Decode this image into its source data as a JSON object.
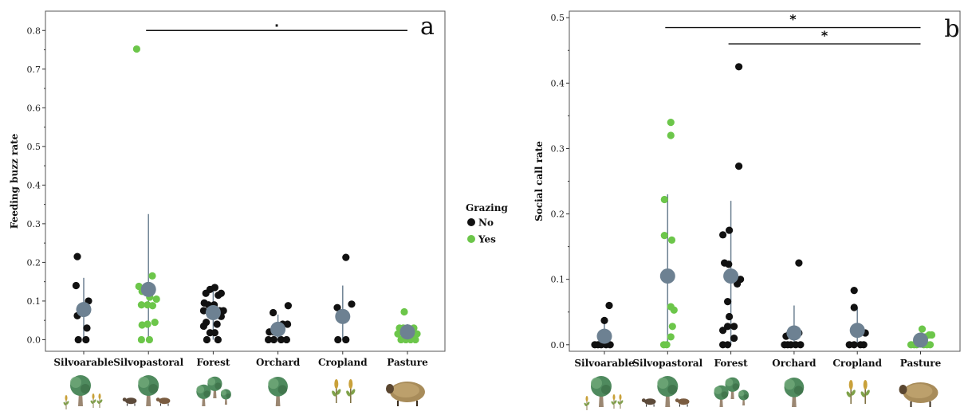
{
  "legend": {
    "title": "Grazing",
    "items": [
      {
        "label": "No",
        "color": "#111111"
      },
      {
        "label": "Yes",
        "color": "#6cc64a"
      }
    ]
  },
  "colors": {
    "mean": "#6d8192",
    "errorbar": "#6d8192",
    "no": "#111111",
    "yes": "#6cc64a"
  },
  "chart_data": [
    {
      "type": "scatter",
      "panel_letter": "a",
      "ylabel": "Feeding buzz rate",
      "xlabel": "",
      "categories": [
        "Silvoarable",
        "Silvopastoral",
        "Forest",
        "Orchard",
        "Cropland",
        "Pasture"
      ],
      "ylim": [
        -0.03,
        0.85
      ],
      "yticks": [
        0.0,
        0.1,
        0.2,
        0.3,
        0.4,
        0.5,
        0.6,
        0.7,
        0.8
      ],
      "tick_labels": [
        "0.0",
        "0.1",
        "0.2",
        "0.3",
        "0.4",
        "0.5",
        "0.6",
        "0.7",
        "0.8"
      ],
      "means": [
        0.078,
        0.13,
        0.07,
        0.027,
        0.06,
        0.02
      ],
      "error_bars": [
        [
          0.0,
          0.16
        ],
        [
          0.0,
          0.325
        ],
        [
          0.0,
          0.13
        ],
        [
          0.0,
          0.065
        ],
        [
          0.0,
          0.14
        ],
        [
          0.0,
          0.04
        ]
      ],
      "points": [
        {
          "cat": 0,
          "dx": -0.2,
          "y": 0.215,
          "g": "No"
        },
        {
          "cat": 0,
          "dx": -0.24,
          "y": 0.14,
          "g": "No"
        },
        {
          "cat": 0,
          "dx": -0.2,
          "y": 0.062,
          "g": "No"
        },
        {
          "cat": 0,
          "dx": 0.15,
          "y": 0.1,
          "g": "No"
        },
        {
          "cat": 0,
          "dx": 0.1,
          "y": 0.03,
          "g": "No"
        },
        {
          "cat": 0,
          "dx": -0.17,
          "y": 0.0,
          "g": "No"
        },
        {
          "cat": 0,
          "dx": 0.07,
          "y": 0.0,
          "g": "No"
        },
        {
          "cat": 1,
          "dx": -0.37,
          "y": 0.752,
          "g": "Yes"
        },
        {
          "cat": 1,
          "dx": -0.3,
          "y": 0.138,
          "g": "Yes"
        },
        {
          "cat": 1,
          "dx": 0.12,
          "y": 0.165,
          "g": "Yes"
        },
        {
          "cat": 1,
          "dx": -0.2,
          "y": 0.125,
          "g": "Yes"
        },
        {
          "cat": 1,
          "dx": 0.04,
          "y": 0.11,
          "g": "Yes"
        },
        {
          "cat": 1,
          "dx": 0.25,
          "y": 0.105,
          "g": "Yes"
        },
        {
          "cat": 1,
          "dx": -0.22,
          "y": 0.09,
          "g": "Yes"
        },
        {
          "cat": 1,
          "dx": -0.03,
          "y": 0.09,
          "g": "Yes"
        },
        {
          "cat": 1,
          "dx": 0.13,
          "y": 0.088,
          "g": "Yes"
        },
        {
          "cat": 1,
          "dx": -0.2,
          "y": 0.038,
          "g": "Yes"
        },
        {
          "cat": 1,
          "dx": -0.03,
          "y": 0.04,
          "g": "Yes"
        },
        {
          "cat": 1,
          "dx": 0.2,
          "y": 0.045,
          "g": "Yes"
        },
        {
          "cat": 1,
          "dx": -0.22,
          "y": 0.0,
          "g": "Yes"
        },
        {
          "cat": 1,
          "dx": 0.03,
          "y": 0.0,
          "g": "Yes"
        },
        {
          "cat": 2,
          "dx": -0.1,
          "y": 0.13,
          "g": "No"
        },
        {
          "cat": 2,
          "dx": 0.05,
          "y": 0.135,
          "g": "No"
        },
        {
          "cat": 2,
          "dx": -0.23,
          "y": 0.12,
          "g": "No"
        },
        {
          "cat": 2,
          "dx": 0.16,
          "y": 0.115,
          "g": "No"
        },
        {
          "cat": 2,
          "dx": 0.25,
          "y": 0.12,
          "g": "No"
        },
        {
          "cat": 2,
          "dx": -0.28,
          "y": 0.095,
          "g": "No"
        },
        {
          "cat": 2,
          "dx": -0.15,
          "y": 0.09,
          "g": "No"
        },
        {
          "cat": 2,
          "dx": 0.03,
          "y": 0.09,
          "g": "No"
        },
        {
          "cat": 2,
          "dx": -0.3,
          "y": 0.075,
          "g": "No"
        },
        {
          "cat": 2,
          "dx": 0.2,
          "y": 0.075,
          "g": "No"
        },
        {
          "cat": 2,
          "dx": 0.32,
          "y": 0.075,
          "g": "No"
        },
        {
          "cat": 2,
          "dx": 0.25,
          "y": 0.06,
          "g": "No"
        },
        {
          "cat": 2,
          "dx": -0.22,
          "y": 0.045,
          "g": "No"
        },
        {
          "cat": 2,
          "dx": 0.12,
          "y": 0.04,
          "g": "No"
        },
        {
          "cat": 2,
          "dx": -0.3,
          "y": 0.035,
          "g": "No"
        },
        {
          "cat": 2,
          "dx": -0.1,
          "y": 0.018,
          "g": "No"
        },
        {
          "cat": 2,
          "dx": 0.05,
          "y": 0.018,
          "g": "No"
        },
        {
          "cat": 2,
          "dx": -0.2,
          "y": 0.0,
          "g": "No"
        },
        {
          "cat": 2,
          "dx": 0.15,
          "y": 0.0,
          "g": "No"
        },
        {
          "cat": 3,
          "dx": -0.15,
          "y": 0.07,
          "g": "No"
        },
        {
          "cat": 3,
          "dx": 0.32,
          "y": 0.088,
          "g": "No"
        },
        {
          "cat": 3,
          "dx": -0.27,
          "y": 0.02,
          "g": "No"
        },
        {
          "cat": 3,
          "dx": -0.13,
          "y": 0.02,
          "g": "No"
        },
        {
          "cat": 3,
          "dx": 0.15,
          "y": 0.04,
          "g": "No"
        },
        {
          "cat": 3,
          "dx": 0.3,
          "y": 0.04,
          "g": "No"
        },
        {
          "cat": 3,
          "dx": -0.3,
          "y": 0.0,
          "g": "No"
        },
        {
          "cat": 3,
          "dx": -0.13,
          "y": 0.0,
          "g": "No"
        },
        {
          "cat": 3,
          "dx": 0.1,
          "y": 0.0,
          "g": "No"
        },
        {
          "cat": 3,
          "dx": 0.27,
          "y": 0.0,
          "g": "No"
        },
        {
          "cat": 4,
          "dx": 0.1,
          "y": 0.213,
          "g": "No"
        },
        {
          "cat": 4,
          "dx": -0.17,
          "y": 0.083,
          "g": "No"
        },
        {
          "cat": 4,
          "dx": 0.28,
          "y": 0.092,
          "g": "No"
        },
        {
          "cat": 4,
          "dx": -0.15,
          "y": 0.0,
          "g": "No"
        },
        {
          "cat": 4,
          "dx": 0.1,
          "y": 0.0,
          "g": "No"
        },
        {
          "cat": 5,
          "dx": -0.1,
          "y": 0.072,
          "g": "Yes"
        },
        {
          "cat": 5,
          "dx": -0.25,
          "y": 0.03,
          "g": "Yes"
        },
        {
          "cat": 5,
          "dx": -0.13,
          "y": 0.03,
          "g": "Yes"
        },
        {
          "cat": 5,
          "dx": 0.2,
          "y": 0.03,
          "g": "Yes"
        },
        {
          "cat": 5,
          "dx": -0.3,
          "y": 0.015,
          "g": "Yes"
        },
        {
          "cat": 5,
          "dx": 0.15,
          "y": 0.015,
          "g": "Yes"
        },
        {
          "cat": 5,
          "dx": 0.3,
          "y": 0.015,
          "g": "Yes"
        },
        {
          "cat": 5,
          "dx": -0.2,
          "y": 0.0,
          "g": "Yes"
        },
        {
          "cat": 5,
          "dx": -0.05,
          "y": 0.0,
          "g": "Yes"
        },
        {
          "cat": 5,
          "dx": 0.1,
          "y": 0.0,
          "g": "Yes"
        },
        {
          "cat": 5,
          "dx": 0.25,
          "y": 0.0,
          "g": "Yes"
        }
      ],
      "significance": [
        {
          "from": 1,
          "to": 5,
          "y": 0.8,
          "label": "."
        }
      ]
    },
    {
      "type": "scatter",
      "panel_letter": "b",
      "ylabel": "Social call rate",
      "xlabel": "",
      "categories": [
        "Silvoarable",
        "Silvopastoral",
        "Forest",
        "Orchard",
        "Cropland",
        "Pasture"
      ],
      "ylim": [
        -0.01,
        0.51
      ],
      "yticks": [
        0.0,
        0.1,
        0.2,
        0.3,
        0.4,
        0.5
      ],
      "tick_labels": [
        "0.0",
        "0.1",
        "0.2",
        "0.3",
        "0.4",
        "0.5"
      ],
      "means": [
        0.013,
        0.105,
        0.105,
        0.018,
        0.022,
        0.007
      ],
      "error_bars": [
        [
          0.0,
          0.035
        ],
        [
          0.0,
          0.23
        ],
        [
          0.0,
          0.22
        ],
        [
          0.0,
          0.06
        ],
        [
          0.0,
          0.057
        ],
        [
          0.0,
          0.018
        ]
      ],
      "points": [
        {
          "cat": 0,
          "dx": 0.15,
          "y": 0.06,
          "g": "No"
        },
        {
          "cat": 0,
          "dx": 0.0,
          "y": 0.037,
          "g": "No"
        },
        {
          "cat": 0,
          "dx": -0.3,
          "y": 0.0,
          "g": "No"
        },
        {
          "cat": 0,
          "dx": -0.2,
          "y": 0.0,
          "g": "No"
        },
        {
          "cat": 0,
          "dx": -0.1,
          "y": 0.0,
          "g": "No"
        },
        {
          "cat": 0,
          "dx": 0.05,
          "y": 0.0,
          "g": "No"
        },
        {
          "cat": 0,
          "dx": 0.18,
          "y": 0.0,
          "g": "No"
        },
        {
          "cat": 1,
          "dx": 0.1,
          "y": 0.34,
          "g": "Yes"
        },
        {
          "cat": 1,
          "dx": 0.1,
          "y": 0.32,
          "g": "Yes"
        },
        {
          "cat": 1,
          "dx": -0.1,
          "y": 0.222,
          "g": "Yes"
        },
        {
          "cat": 1,
          "dx": -0.1,
          "y": 0.167,
          "g": "Yes"
        },
        {
          "cat": 1,
          "dx": 0.13,
          "y": 0.16,
          "g": "Yes"
        },
        {
          "cat": 1,
          "dx": 0.1,
          "y": 0.058,
          "g": "Yes"
        },
        {
          "cat": 1,
          "dx": 0.2,
          "y": 0.053,
          "g": "Yes"
        },
        {
          "cat": 1,
          "dx": 0.15,
          "y": 0.028,
          "g": "Yes"
        },
        {
          "cat": 1,
          "dx": 0.1,
          "y": 0.012,
          "g": "Yes"
        },
        {
          "cat": 1,
          "dx": -0.12,
          "y": 0.0,
          "g": "Yes"
        },
        {
          "cat": 1,
          "dx": -0.03,
          "y": 0.0,
          "g": "Yes"
        },
        {
          "cat": 2,
          "dx": 0.25,
          "y": 0.425,
          "g": "No"
        },
        {
          "cat": 2,
          "dx": 0.25,
          "y": 0.273,
          "g": "No"
        },
        {
          "cat": 2,
          "dx": -0.25,
          "y": 0.168,
          "g": "No"
        },
        {
          "cat": 2,
          "dx": -0.05,
          "y": 0.175,
          "g": "No"
        },
        {
          "cat": 2,
          "dx": -0.2,
          "y": 0.125,
          "g": "No"
        },
        {
          "cat": 2,
          "dx": -0.07,
          "y": 0.123,
          "g": "No"
        },
        {
          "cat": 2,
          "dx": 0.3,
          "y": 0.1,
          "g": "No"
        },
        {
          "cat": 2,
          "dx": 0.2,
          "y": 0.093,
          "g": "No"
        },
        {
          "cat": 2,
          "dx": -0.1,
          "y": 0.066,
          "g": "No"
        },
        {
          "cat": 2,
          "dx": -0.05,
          "y": 0.043,
          "g": "No"
        },
        {
          "cat": 2,
          "dx": -0.25,
          "y": 0.022,
          "g": "No"
        },
        {
          "cat": 2,
          "dx": -0.1,
          "y": 0.028,
          "g": "No"
        },
        {
          "cat": 2,
          "dx": 0.1,
          "y": 0.028,
          "g": "No"
        },
        {
          "cat": 2,
          "dx": 0.1,
          "y": 0.01,
          "g": "No"
        },
        {
          "cat": 2,
          "dx": -0.25,
          "y": 0.0,
          "g": "No"
        },
        {
          "cat": 2,
          "dx": -0.1,
          "y": 0.0,
          "g": "No"
        },
        {
          "cat": 3,
          "dx": 0.15,
          "y": 0.125,
          "g": "No"
        },
        {
          "cat": 3,
          "dx": -0.25,
          "y": 0.013,
          "g": "No"
        },
        {
          "cat": 3,
          "dx": -0.15,
          "y": 0.016,
          "g": "No"
        },
        {
          "cat": 3,
          "dx": 0.15,
          "y": 0.018,
          "g": "No"
        },
        {
          "cat": 3,
          "dx": -0.3,
          "y": 0.0,
          "g": "No"
        },
        {
          "cat": 3,
          "dx": -0.2,
          "y": 0.0,
          "g": "No"
        },
        {
          "cat": 3,
          "dx": -0.1,
          "y": 0.0,
          "g": "No"
        },
        {
          "cat": 3,
          "dx": 0.05,
          "y": 0.0,
          "g": "No"
        },
        {
          "cat": 3,
          "dx": 0.2,
          "y": 0.0,
          "g": "No"
        },
        {
          "cat": 4,
          "dx": -0.1,
          "y": 0.083,
          "g": "No"
        },
        {
          "cat": 4,
          "dx": -0.1,
          "y": 0.057,
          "g": "No"
        },
        {
          "cat": 4,
          "dx": 0.25,
          "y": 0.018,
          "g": "No"
        },
        {
          "cat": 4,
          "dx": -0.25,
          "y": 0.0,
          "g": "No"
        },
        {
          "cat": 4,
          "dx": -0.1,
          "y": 0.0,
          "g": "No"
        },
        {
          "cat": 4,
          "dx": 0.1,
          "y": 0.0,
          "g": "No"
        },
        {
          "cat": 4,
          "dx": 0.2,
          "y": 0.0,
          "g": "No"
        },
        {
          "cat": 5,
          "dx": 0.05,
          "y": 0.024,
          "g": "Yes"
        },
        {
          "cat": 5,
          "dx": -0.1,
          "y": 0.01,
          "g": "Yes"
        },
        {
          "cat": 5,
          "dx": 0.15,
          "y": 0.012,
          "g": "Yes"
        },
        {
          "cat": 5,
          "dx": 0.27,
          "y": 0.015,
          "g": "Yes"
        },
        {
          "cat": 5,
          "dx": 0.35,
          "y": 0.015,
          "g": "Yes"
        },
        {
          "cat": 5,
          "dx": -0.3,
          "y": 0.0,
          "g": "Yes"
        },
        {
          "cat": 5,
          "dx": -0.2,
          "y": 0.0,
          "g": "Yes"
        },
        {
          "cat": 5,
          "dx": -0.12,
          "y": 0.0,
          "g": "Yes"
        },
        {
          "cat": 5,
          "dx": 0.1,
          "y": 0.0,
          "g": "Yes"
        },
        {
          "cat": 5,
          "dx": 0.2,
          "y": 0.0,
          "g": "Yes"
        },
        {
          "cat": 5,
          "dx": 0.3,
          "y": 0.0,
          "g": "Yes"
        }
      ],
      "significance": [
        {
          "from": 1,
          "to": 5,
          "y": 0.485,
          "label": "*"
        },
        {
          "from": 2,
          "to": 5,
          "y": 0.46,
          "label": "*"
        }
      ]
    }
  ]
}
